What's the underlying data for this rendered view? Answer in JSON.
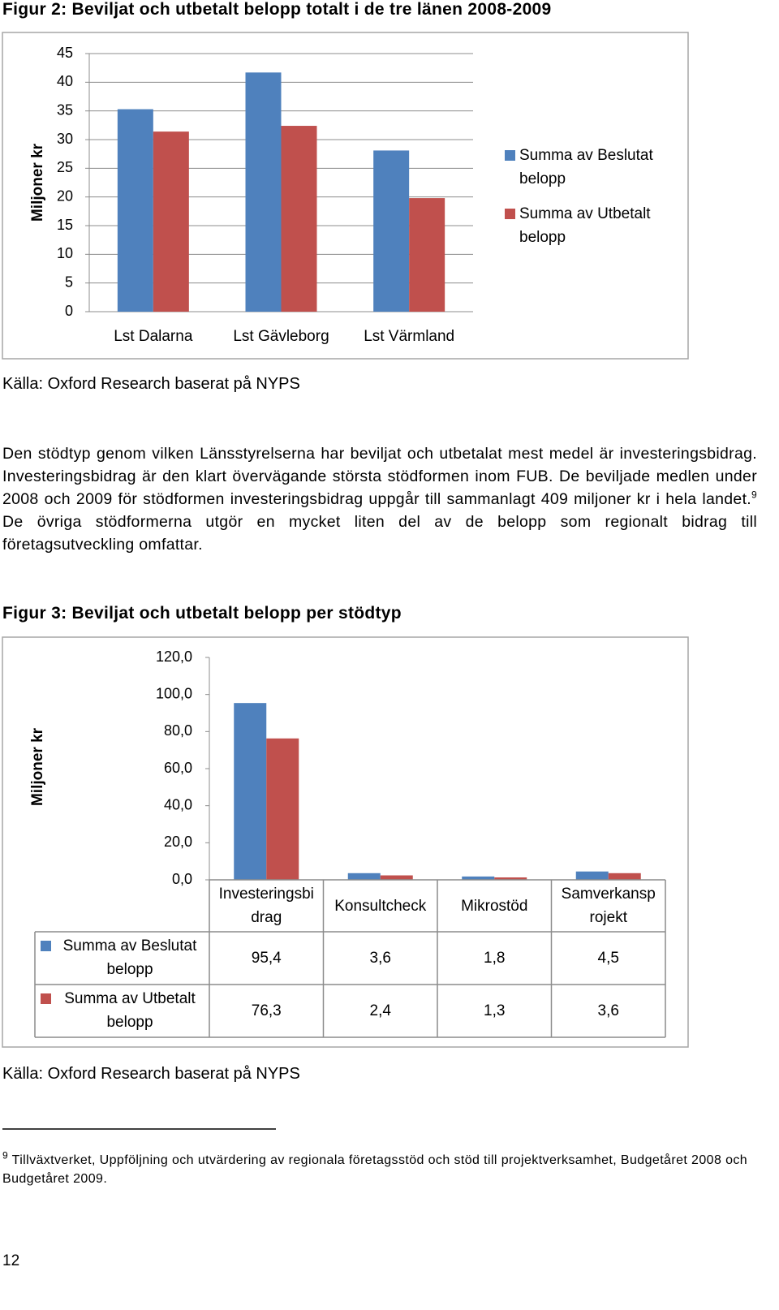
{
  "chart_data": [
    {
      "type": "bar",
      "title": "Figur 2: Beviljat och utbetalt belopp totalt i de tre länen 2008-2009",
      "y_label": "Miljoner kr",
      "categories": [
        "Lst Dalarna",
        "Lst Gävleborg",
        "Lst Värmland"
      ],
      "series": [
        {
          "name": "Summa av Beslutat belopp",
          "color": "#4f81bd",
          "values": [
            35.3,
            41.7,
            28.1
          ]
        },
        {
          "name": "Summa av Utbetalt belopp",
          "color": "#c0504d",
          "values": [
            31.4,
            32.4,
            19.8
          ]
        }
      ],
      "ylim": [
        0,
        45
      ],
      "yticks": [
        0,
        5,
        10,
        15,
        20,
        25,
        30,
        35,
        40,
        45
      ],
      "grid": true,
      "source": "Källa: Oxford Research baserat på NYPS"
    },
    {
      "type": "bar",
      "title": "Figur 3: Beviljat och utbetalt belopp per stödtyp",
      "y_label": "Miljoner kr",
      "categories": [
        "Investeringsbidrag",
        "Konsultcheck",
        "Mikrostöd",
        "Samverkansprojekt"
      ],
      "series": [
        {
          "name": "Summa av Beslutat belopp",
          "color": "#4f81bd",
          "values": [
            95.4,
            3.6,
            1.8,
            4.5
          ],
          "value_labels": [
            "95,4",
            "3,6",
            "1,8",
            "4,5"
          ]
        },
        {
          "name": "Summa av Utbetalt belopp",
          "color": "#c0504d",
          "values": [
            76.3,
            2.4,
            1.3,
            3.6
          ],
          "value_labels": [
            "76,3",
            "2,4",
            "1,3",
            "3,6"
          ]
        }
      ],
      "ylim": [
        0,
        120
      ],
      "yticks": [
        {
          "value": 0,
          "label": "0,0"
        },
        {
          "value": 20,
          "label": "20,0"
        },
        {
          "value": 40,
          "label": "40,0"
        },
        {
          "value": 60,
          "label": "60,0"
        },
        {
          "value": 80,
          "label": "80,0"
        },
        {
          "value": 100,
          "label": "100,0"
        },
        {
          "value": 120,
          "label": "120,0"
        }
      ],
      "grid": false,
      "source": "Källa: Oxford Research baserat på NYPS"
    }
  ],
  "paragraph": {
    "text_before": "Den stödtyp genom vilken Länsstyrelserna har beviljat och utbetalat mest medel är investeringsbidrag. Investeringsbidrag är den klart övervägande största stödformen inom FUB. De beviljade medlen under 2008 och 2009 för stödformen investeringsbidrag uppgår till sammanlagt 409 miljoner kr i hela landet.",
    "footnote_ref": "9",
    "text_after": " De övriga stödformerna utgör en mycket liten del av de belopp som regionalt bidrag till företagsutveckling omfattar."
  },
  "footnote": {
    "number": "9",
    "text": " Tillväxtverket, Uppföljning och utvärdering av regionala företagsstöd och stöd till projektverksamhet, Budgetåret 2008 och Budgetåret 2009."
  },
  "page_number": "12"
}
